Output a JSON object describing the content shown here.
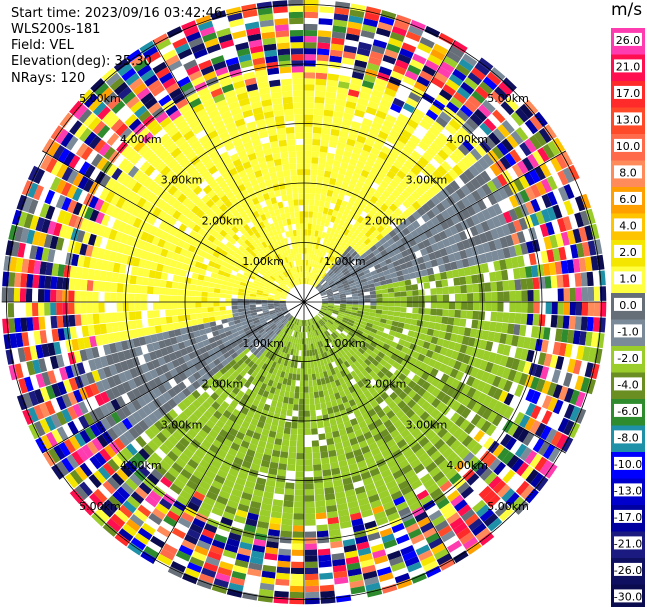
{
  "info": {
    "start_time": "Start time: 2023/09/16 03:42:46",
    "instrument": "WLS200s-181",
    "field": "Field: VEL",
    "elevation": "Elevation(deg): 35.30",
    "nrays": "NRays: 120"
  },
  "chart_data": {
    "type": "heatmap",
    "projection": "polar-ppi",
    "nrays": 120,
    "field": "VEL",
    "ring_labels": [
      "1.00km",
      "2.00km",
      "3.00km",
      "4.00km",
      "5.00km"
    ],
    "colorbar": {
      "unit": "m/s",
      "ticks": [
        "26.0",
        "21.0",
        "17.0",
        "13.0",
        "10.0",
        "8.0",
        "6.0",
        "4.0",
        "2.0",
        "1.0",
        "0.0",
        "-1.0",
        "-2.0",
        "-4.0",
        "-6.0",
        "-8.0",
        "-10.0",
        "-13.0",
        "-17.0",
        "-21.0",
        "-26.0",
        "-30.0"
      ],
      "colors": [
        "#ff3bb0",
        "#ff0f4f",
        "#ff2a2a",
        "#ff4a2a",
        "#ff6a4a",
        "#ff8a5a",
        "#ffa000",
        "#ffc400",
        "#f5e600",
        "#ffff40",
        "#666e78",
        "#7a8a98",
        "#9acc2a",
        "#6b8e23",
        "#2e8b2e",
        "#1e90a8",
        "#0000ff",
        "#0000cc",
        "#0000a0",
        "#1a1a80",
        "#101060",
        "#0b0b4f"
      ]
    },
    "velocity_pattern": {
      "near_north": 2.0,
      "near_south": -2.0,
      "axis_zero_bearing_deg": 65,
      "outer_noise_range_km": [
        3.8,
        5.6
      ]
    }
  }
}
